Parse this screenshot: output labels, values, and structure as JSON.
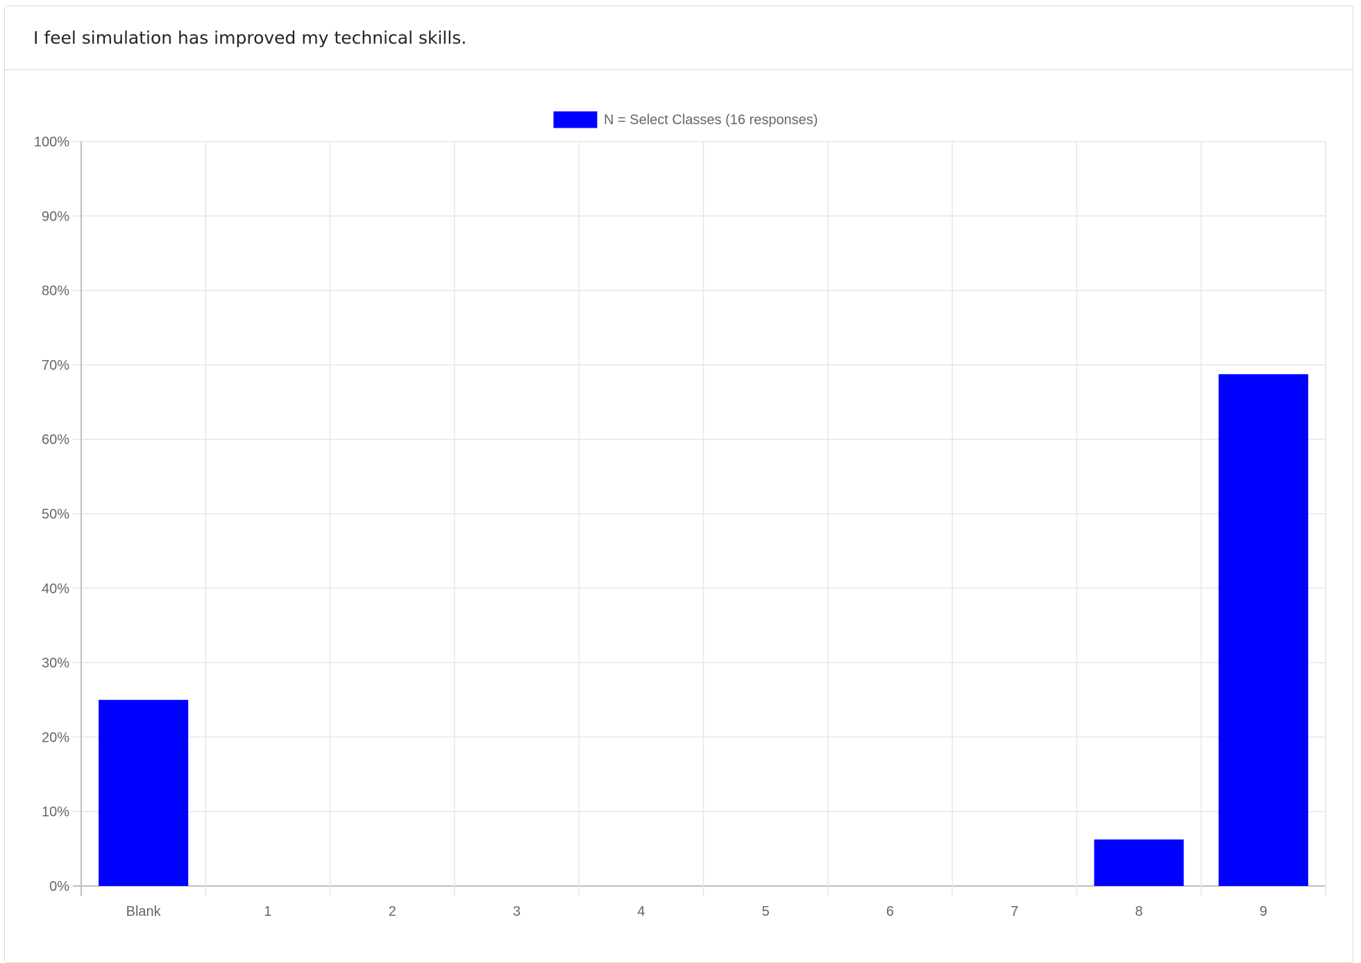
{
  "question": {
    "text": "I feel simulation has improved my technical skills."
  },
  "chart_data": {
    "type": "bar",
    "categories": [
      "Blank",
      "1",
      "2",
      "3",
      "4",
      "5",
      "6",
      "7",
      "8",
      "9"
    ],
    "series": [
      {
        "name": "N = Select Classes (16 responses)",
        "color": "#0000ff",
        "values": [
          25,
          0,
          0,
          0,
          0,
          0,
          0,
          0,
          6.25,
          68.75
        ]
      }
    ],
    "y_ticks": [
      "0%",
      "10%",
      "20%",
      "30%",
      "40%",
      "50%",
      "60%",
      "70%",
      "80%",
      "90%",
      "100%"
    ],
    "ylim": [
      0,
      100
    ],
    "grid": true,
    "legend_position": "top-center"
  }
}
